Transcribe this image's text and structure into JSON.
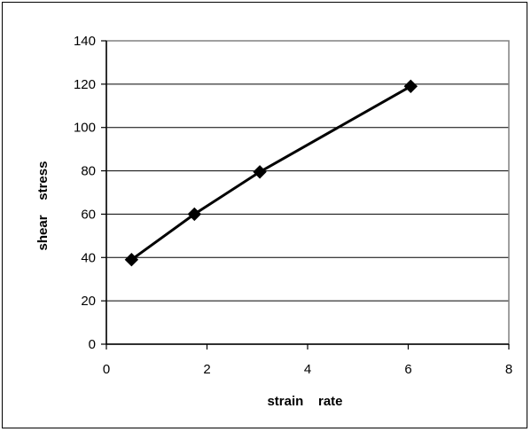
{
  "chart_data": {
    "type": "line",
    "title": "",
    "xlabel": "strain    rate",
    "ylabel": "shear    stress",
    "xlim": [
      0,
      8
    ],
    "ylim": [
      0,
      140
    ],
    "x_ticks": [
      "0",
      "2",
      "4",
      "6",
      "8"
    ],
    "y_ticks": [
      "0",
      "20",
      "40",
      "60",
      "80",
      "100",
      "120",
      "140"
    ],
    "grid": "horizontal",
    "legend": "none",
    "series": [
      {
        "x": [
          0.5,
          1.75,
          3.05,
          6.05
        ],
        "y": [
          39,
          60,
          79.5,
          119
        ],
        "marker": "diamond"
      }
    ],
    "colors": {
      "line": "#000000",
      "plot_border": "#808080",
      "gridline": "#000000"
    }
  }
}
